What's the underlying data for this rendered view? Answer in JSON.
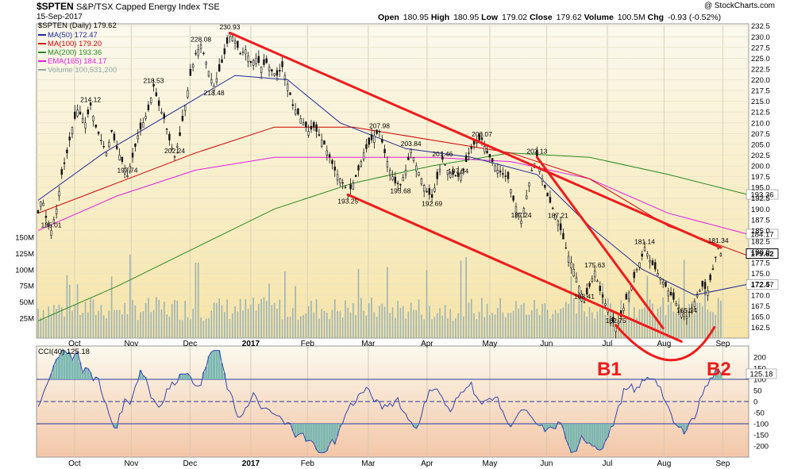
{
  "header": {
    "symbol": "$SPTEN",
    "name": "S&P/TSX Capped Energy Index",
    "exchange": "TSE",
    "date": "15-Sep-2017",
    "copyright": "@ StockCharts.com",
    "ohlc": {
      "open_label": "Open",
      "open": "180.95",
      "high_label": "High",
      "high": "180.95",
      "low_label": "Low",
      "low": "179.02",
      "close_label": "Close",
      "close": "179.62",
      "volume_label": "Volume",
      "volume": "100.5M",
      "chg_label": "Chg",
      "chg": "-0.93 (-0.52%)"
    }
  },
  "legend": {
    "title": "$SPTEN (Daily) 179.62",
    "items": [
      {
        "text": "MA(50) 172.47",
        "color": "#1f2a99"
      },
      {
        "text": "MA(100) 179.20",
        "color": "#cc0000"
      },
      {
        "text": "MA(200) 193.36",
        "color": "#2a8a1f"
      },
      {
        "text": "EMA(165) 184.17",
        "color": "#e020e0"
      },
      {
        "text": "Volume 100,531,200",
        "color": "#8fa8a8"
      }
    ]
  },
  "cci_legend": "CCI(40) 125.18",
  "annotations": {
    "b1": "B1",
    "b2": "B2"
  },
  "chart_data": [
    {
      "type": "line",
      "title": "$SPTEN (Daily) 179.62",
      "x_labels": [
        "Oct",
        "Nov",
        "Dec",
        "2017",
        "Feb",
        "Mar",
        "Apr",
        "May",
        "Jun",
        "Jul",
        "Aug",
        "Sep"
      ],
      "ylim": [
        160,
        233
      ],
      "y_ticks": [
        162.5,
        165,
        167.5,
        170,
        172.5,
        175,
        177.5,
        180,
        182.5,
        185,
        187.5,
        190,
        192.5,
        195,
        197.5,
        200,
        202.5,
        205,
        207.5,
        210,
        212.5,
        215,
        217.5,
        220,
        222.5,
        225,
        227.5,
        230,
        232.5
      ],
      "volume_ticks": [
        "25M",
        "50M",
        "75M",
        "100M",
        "125M",
        "150M"
      ],
      "price_path": [
        [
          0,
          189
        ],
        [
          3,
          193
        ],
        [
          6,
          188
        ],
        [
          10,
          185
        ],
        [
          14,
          190
        ],
        [
          18,
          198
        ],
        [
          22,
          203
        ],
        [
          26,
          209
        ],
        [
          30,
          213
        ],
        [
          36,
          210
        ],
        [
          40,
          214.1
        ],
        [
          44,
          209
        ],
        [
          48,
          206
        ],
        [
          52,
          203
        ],
        [
          56,
          208
        ],
        [
          60,
          204
        ],
        [
          64,
          201
        ],
        [
          68,
          197.7
        ],
        [
          72,
          202
        ],
        [
          76,
          207
        ],
        [
          80,
          210
        ],
        [
          84,
          213
        ],
        [
          88,
          218.5
        ],
        [
          92,
          214
        ],
        [
          96,
          211
        ],
        [
          100,
          206
        ],
        [
          104,
          202.2
        ],
        [
          108,
          207
        ],
        [
          112,
          214
        ],
        [
          116,
          221
        ],
        [
          120,
          226
        ],
        [
          124,
          228.1
        ],
        [
          128,
          224
        ],
        [
          132,
          220
        ],
        [
          134,
          218.5
        ],
        [
          138,
          222
        ],
        [
          142,
          226
        ],
        [
          146,
          230.9
        ],
        [
          150,
          229
        ],
        [
          154,
          226
        ],
        [
          158,
          227
        ],
        [
          162,
          224
        ],
        [
          166,
          225
        ],
        [
          170,
          223
        ],
        [
          174,
          224
        ],
        [
          178,
          222
        ],
        [
          182,
          221
        ],
        [
          186,
          223
        ],
        [
          190,
          219
        ],
        [
          194,
          214
        ],
        [
          198,
          212
        ],
        [
          202,
          210
        ],
        [
          206,
          208
        ],
        [
          210,
          209
        ],
        [
          214,
          207
        ],
        [
          218,
          205
        ],
        [
          222,
          202
        ],
        [
          226,
          199
        ],
        [
          230,
          197
        ],
        [
          234,
          195
        ],
        [
          236,
          193.3
        ],
        [
          240,
          196
        ],
        [
          244,
          199
        ],
        [
          248,
          203
        ],
        [
          252,
          205
        ],
        [
          256,
          207
        ],
        [
          260,
          208
        ],
        [
          264,
          203
        ],
        [
          268,
          199
        ],
        [
          272,
          196
        ],
        [
          276,
          195.7
        ],
        [
          280,
          199
        ],
        [
          284,
          203.8
        ],
        [
          288,
          200
        ],
        [
          292,
          197
        ],
        [
          296,
          194
        ],
        [
          300,
          192.7
        ],
        [
          304,
          197
        ],
        [
          308,
          201.5
        ],
        [
          312,
          199
        ],
        [
          316,
          198
        ],
        [
          320,
          197.5
        ],
        [
          324,
          199
        ],
        [
          328,
          203
        ],
        [
          332,
          205
        ],
        [
          336,
          206
        ],
        [
          338,
          206.1
        ],
        [
          342,
          203
        ],
        [
          346,
          201
        ],
        [
          350,
          199
        ],
        [
          354,
          198
        ],
        [
          358,
          197
        ],
        [
          362,
          192
        ],
        [
          366,
          189
        ],
        [
          368,
          187.2
        ],
        [
          372,
          193
        ],
        [
          376,
          199
        ],
        [
          380,
          202.1
        ],
        [
          384,
          197
        ],
        [
          388,
          193
        ],
        [
          392,
          190
        ],
        [
          396,
          187.2
        ],
        [
          400,
          183
        ],
        [
          404,
          179
        ],
        [
          408,
          176
        ],
        [
          412,
          172
        ],
        [
          416,
          168.4
        ],
        [
          420,
          172
        ],
        [
          424,
          175.6
        ],
        [
          428,
          171
        ],
        [
          432,
          168
        ],
        [
          436,
          165
        ],
        [
          440,
          162.8
        ],
        [
          444,
          165
        ],
        [
          448,
          169
        ],
        [
          452,
          172
        ],
        [
          456,
          176
        ],
        [
          460,
          179
        ],
        [
          462,
          181.1
        ],
        [
          466,
          178
        ],
        [
          470,
          176
        ],
        [
          474,
          174
        ],
        [
          478,
          172
        ],
        [
          482,
          170
        ],
        [
          486,
          168
        ],
        [
          490,
          166
        ],
        [
          494,
          165.1
        ],
        [
          498,
          167
        ],
        [
          502,
          170
        ],
        [
          506,
          172
        ],
        [
          510,
          171
        ],
        [
          514,
          176
        ],
        [
          518,
          181.3
        ],
        [
          520,
          179.6
        ]
      ],
      "series": [
        {
          "name": "MA(50)",
          "value": 172.47,
          "color": "#1f2a99"
        },
        {
          "name": "MA(100)",
          "value": 179.2,
          "color": "#cc0000"
        },
        {
          "name": "MA(200)",
          "value": 193.36,
          "color": "#2a8a1f"
        },
        {
          "name": "EMA(165)",
          "value": 184.17,
          "color": "#e020e0"
        }
      ],
      "price_labels": [
        {
          "t": 10,
          "v": 185.01,
          "text": "185.01"
        },
        {
          "t": 40,
          "v": 214.12,
          "text": "214.12"
        },
        {
          "t": 68,
          "v": 197.74,
          "text": "197.74"
        },
        {
          "t": 88,
          "v": 218.53,
          "text": "218.53"
        },
        {
          "t": 104,
          "v": 202.24,
          "text": "202.24"
        },
        {
          "t": 124,
          "v": 228.08,
          "text": "228.08"
        },
        {
          "t": 134,
          "v": 218.48,
          "text": "218.48"
        },
        {
          "t": 146,
          "v": 230.93,
          "text": "230.93"
        },
        {
          "t": 236,
          "v": 193.25,
          "text": "193.25"
        },
        {
          "t": 260,
          "v": 207.98,
          "text": "207.98"
        },
        {
          "t": 276,
          "v": 195.68,
          "text": "195.68"
        },
        {
          "t": 284,
          "v": 203.84,
          "text": "203.84"
        },
        {
          "t": 300,
          "v": 192.69,
          "text": "192.69"
        },
        {
          "t": 308,
          "v": 201.46,
          "text": "201.46"
        },
        {
          "t": 320,
          "v": 197.54,
          "text": "197.54"
        },
        {
          "t": 338,
          "v": 206.07,
          "text": "206.07"
        },
        {
          "t": 368,
          "v": 187.24,
          "text": "187.24"
        },
        {
          "t": 380,
          "v": 202.13,
          "text": "202.13"
        },
        {
          "t": 396,
          "v": 187.21,
          "text": "187.21"
        },
        {
          "t": 416,
          "v": 168.41,
          "text": "168.41"
        },
        {
          "t": 424,
          "v": 175.63,
          "text": "175.63"
        },
        {
          "t": 440,
          "v": 162.75,
          "text": "162.75"
        },
        {
          "t": 462,
          "v": 181.14,
          "text": "181.14"
        },
        {
          "t": 494,
          "v": 165.14,
          "text": "165.14"
        },
        {
          "t": 518,
          "v": 181.34,
          "text": "181.34"
        }
      ],
      "price_tags": [
        {
          "text": "193.36",
          "value": 193.36
        },
        {
          "text": "184.17",
          "value": 184.17
        },
        {
          "text": "179.62",
          "value": 179.62
        },
        {
          "text": "172.47",
          "value": 172.47
        }
      ]
    },
    {
      "type": "line",
      "title": "CCI(40) 125.18",
      "ylim": [
        -250,
        250
      ],
      "y_ticks": [
        200,
        150,
        100,
        50,
        0,
        -50,
        -100,
        -150,
        -200
      ],
      "last_value": "125.18"
    }
  ]
}
